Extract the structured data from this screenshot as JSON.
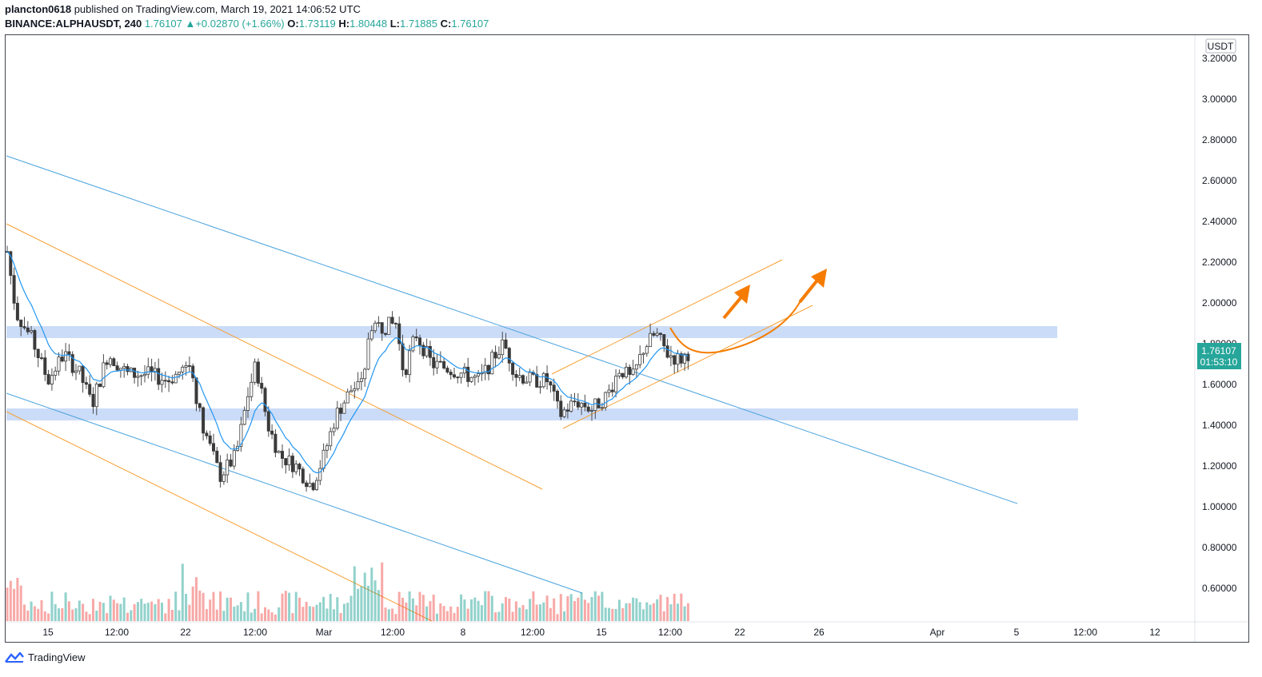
{
  "header": {
    "author": "plancton0618",
    "published_text": " published on TradingView.com, March 19, 2021 14:06:52 UTC",
    "symbol": "BINANCE:ALPHAUSDT, 240",
    "last": "1.76107",
    "change": "+0.02870 (+1.66%)",
    "o_label": "O:",
    "o": "1.73119",
    "h_label": "H:",
    "h": "1.80448",
    "l_label": "L:",
    "l": "1.71885",
    "c_label": "C:",
    "c": "1.76107"
  },
  "chart_data": {
    "type": "candlestick",
    "currency_label": "USDT",
    "y_ticks": [
      "3.20000",
      "3.00000",
      "2.80000",
      "2.60000",
      "2.40000",
      "2.20000",
      "2.00000",
      "1.80000",
      "1.60000",
      "1.40000",
      "1.20000",
      "1.00000",
      "0.80000",
      "0.60000"
    ],
    "y_tick_values": [
      3.2,
      3.0,
      2.8,
      2.6,
      2.4,
      2.2,
      2.0,
      1.8,
      1.6,
      1.4,
      1.2,
      1.0,
      0.8,
      0.6
    ],
    "x_ticks": [
      "15",
      "12:00",
      "22",
      "12:00",
      "Mar",
      "12:00",
      "8",
      "12:00",
      "15",
      "12:00",
      "22",
      "26",
      "Apr",
      "5",
      "12:00",
      "12"
    ],
    "last_price_label": "1.76107",
    "countdown_label": "01:53:10",
    "resistance_zone": [
      1.82,
      1.88
    ],
    "support_zone": [
      1.42,
      1.48
    ],
    "colors": {
      "up": "#26a69a",
      "down": "#ef5350",
      "ma": "#2196f3",
      "channel_blue": "#4aa3df",
      "channel_orange": "#f7a035",
      "zone": "#c5d8f7",
      "arrow": "#f57c00"
    }
  },
  "footer": {
    "brand": "TradingView"
  }
}
